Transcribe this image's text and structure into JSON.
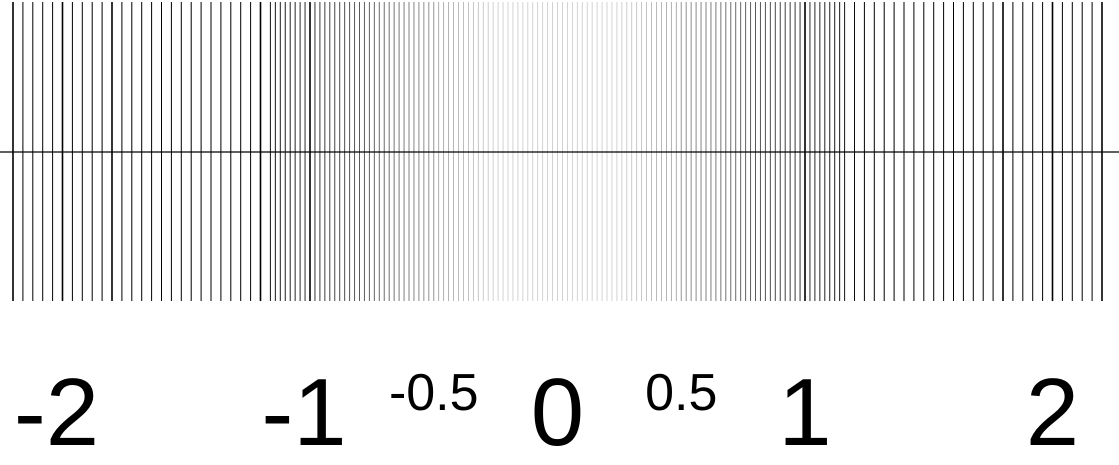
{
  "diagram": {
    "type": "number-line-scale",
    "axis_min": -2.2,
    "axis_max": 2.2,
    "tick_step": 0.02,
    "emphasized_ticks": [
      -2.2,
      -2,
      -1.8,
      -1.2,
      -1,
      1,
      1.8,
      2,
      2.2
    ],
    "tick_color_far": "#000000",
    "tick_color_near_zero": "#c8c8c8",
    "axis_color": "#000000",
    "labels": [
      {
        "value": -2,
        "text": "-2",
        "size": "large"
      },
      {
        "value": -1,
        "text": "-1",
        "size": "large"
      },
      {
        "value": -0.5,
        "text": "-0.5",
        "size": "small"
      },
      {
        "value": 0,
        "text": "0",
        "size": "large"
      },
      {
        "value": 0.5,
        "text": "0.5",
        "size": "small"
      },
      {
        "value": 1,
        "text": "1",
        "size": "large"
      },
      {
        "value": 2,
        "text": "2",
        "size": "large"
      }
    ]
  }
}
